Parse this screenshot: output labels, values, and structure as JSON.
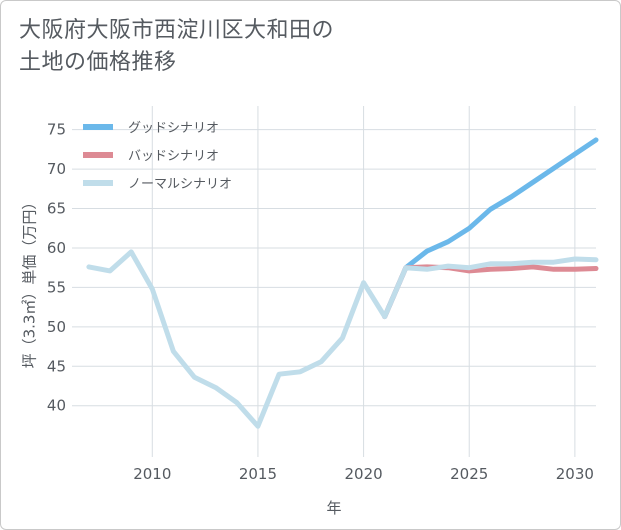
{
  "title_lines": [
    "大阪府大阪市西淀川区大和田の",
    "土地の価格推移"
  ],
  "chart_data": {
    "type": "line",
    "title": "大阪府大阪市西淀川区大和田の土地の価格推移",
    "xlabel": "年",
    "ylabel": "坪（3.3㎡）単価（万円）",
    "xlim": [
      2006.2,
      2031
    ],
    "ylim": [
      33.5,
      78
    ],
    "x_ticks": [
      2010,
      2015,
      2020,
      2025,
      2030
    ],
    "y_ticks": [
      40,
      45,
      50,
      55,
      60,
      65,
      70,
      75
    ],
    "grid": true,
    "legend_position": "top-left",
    "series": [
      {
        "name": "グッドシナリオ",
        "color": "#6bb8ea",
        "x": [
          2021,
          2022,
          2023,
          2024,
          2025,
          2026,
          2027,
          2028,
          2029,
          2030,
          2031
        ],
        "values": [
          51.3,
          57.5,
          59.6,
          60.8,
          62.5,
          64.9,
          66.5,
          68.3,
          70.1,
          71.9,
          73.7
        ]
      },
      {
        "name": "バッドシナリオ",
        "color": "#dd8a94",
        "x": [
          2021,
          2022,
          2023,
          2024,
          2025,
          2026,
          2027,
          2028,
          2029,
          2030,
          2031
        ],
        "values": [
          51.3,
          57.5,
          57.6,
          57.5,
          57.1,
          57.3,
          57.4,
          57.6,
          57.3,
          57.3,
          57.4
        ]
      },
      {
        "name": "ノーマルシナリオ",
        "color": "#c0ddea",
        "x": [
          2007,
          2008,
          2009,
          2010,
          2011,
          2012,
          2013,
          2014,
          2015,
          2016,
          2017,
          2018,
          2019,
          2020,
          2021,
          2022,
          2023,
          2024,
          2025,
          2026,
          2027,
          2028,
          2029,
          2030,
          2031
        ],
        "values": [
          57.6,
          57.1,
          59.5,
          54.8,
          46.9,
          43.6,
          42.3,
          40.4,
          37.4,
          44.0,
          44.3,
          45.6,
          48.6,
          55.6,
          51.3,
          57.5,
          57.3,
          57.7,
          57.5,
          58.0,
          58.0,
          58.2,
          58.2,
          58.6,
          58.5
        ]
      }
    ]
  }
}
